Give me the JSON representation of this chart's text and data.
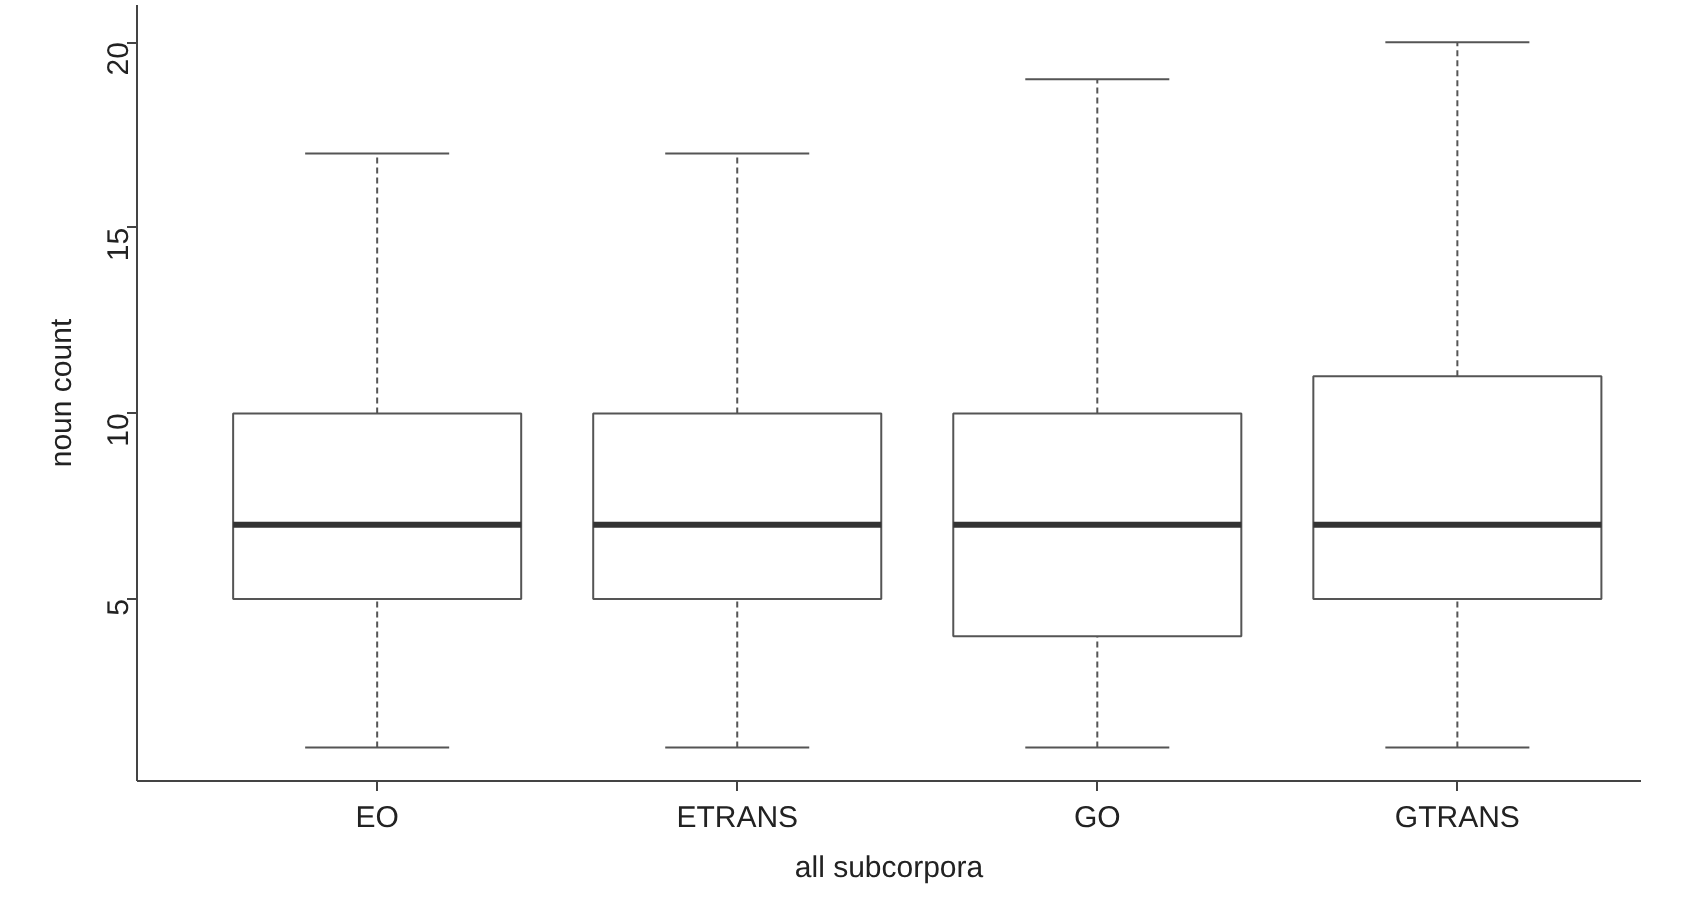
{
  "chart_data": {
    "type": "box",
    "xlabel": "all subcorpora",
    "ylabel": "noun count",
    "categories": [
      "EO",
      "ETRANS",
      "GO",
      "GTRANS"
    ],
    "boxes": [
      {
        "low": 1,
        "q1": 5,
        "median": 7,
        "q3": 10,
        "high": 17
      },
      {
        "low": 1,
        "q1": 5,
        "median": 7,
        "q3": 10,
        "high": 17
      },
      {
        "low": 1,
        "q1": 4,
        "median": 7,
        "q3": 10,
        "high": 19
      },
      {
        "low": 1,
        "q1": 5,
        "median": 7,
        "q3": 11,
        "high": 20
      }
    ],
    "ylim": [
      0.1,
      21
    ],
    "yticks": [
      5,
      10,
      15,
      20
    ]
  }
}
